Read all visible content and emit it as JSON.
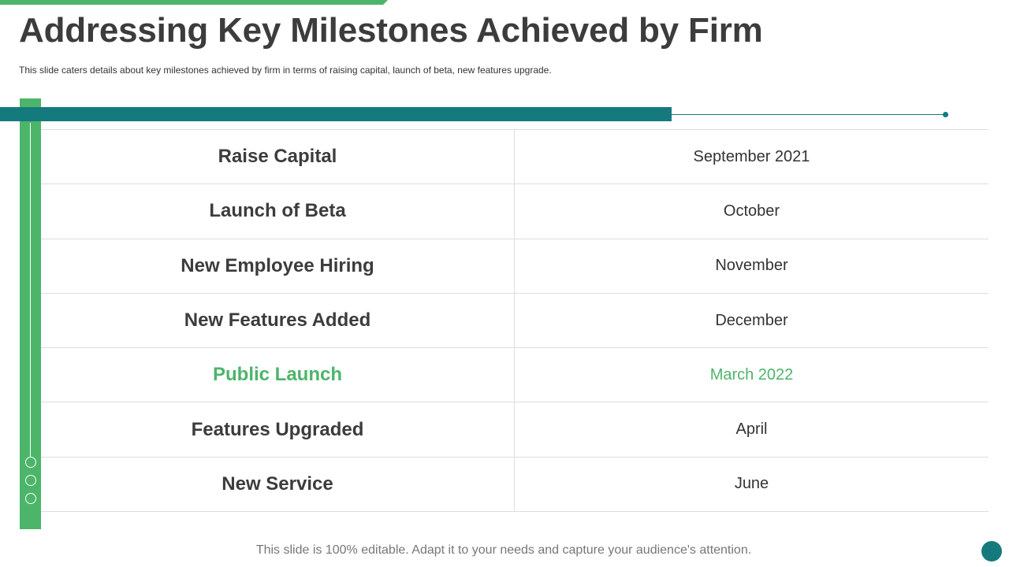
{
  "header": {
    "title": "Addressing Key Milestones Achieved by Firm",
    "subtitle": "This slide caters details about key milestones achieved  by firm in terms of raising capital, launch of beta, new features upgrade."
  },
  "milestones": [
    {
      "name": "Raise Capital",
      "date": "September  2021",
      "highlight": false
    },
    {
      "name": "Launch of Beta",
      "date": "October",
      "highlight": false
    },
    {
      "name": "New Employee Hiring",
      "date": "November",
      "highlight": false
    },
    {
      "name": "New Features Added",
      "date": "December",
      "highlight": false
    },
    {
      "name": "Public Launch",
      "date": "March 2022",
      "highlight": true
    },
    {
      "name": "Features Upgraded",
      "date": "April",
      "highlight": false
    },
    {
      "name": "New Service",
      "date": "June",
      "highlight": false
    }
  ],
  "footer": {
    "note": "This slide is 100% editable. Adapt it to your needs and capture your audience's attention."
  },
  "colors": {
    "accent_green": "#4cb56a",
    "accent_teal": "#157a7e",
    "text_dark": "#3c3c3c"
  }
}
